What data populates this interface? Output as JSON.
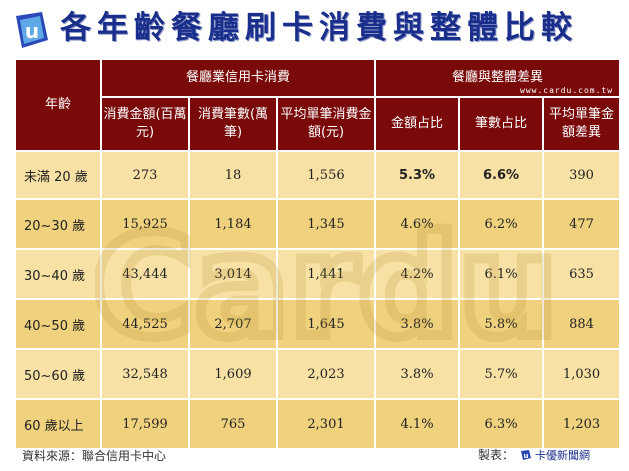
{
  "title": "各年齡餐廳刷卡消費與整體比較",
  "table": {
    "header_row1": {
      "age": "年齡",
      "group_a": "餐廳業信用卡消費",
      "group_b": "餐廳與整體差異"
    },
    "header_row2": {
      "amount": "消費金額(百萬元)",
      "count": "消費筆數(萬筆)",
      "avg": "平均單筆消費金額(元)",
      "amount_share": "金額占比",
      "count_share": "筆數占比",
      "avg_diff": "平均單筆金額差異"
    },
    "rows": [
      {
        "age": "未滿 20 歲",
        "amount": "273",
        "count": "18",
        "avg": "1,556",
        "amount_share": "5.3%",
        "count_share": "6.6%",
        "avg_diff": "390"
      },
      {
        "age": "20~30 歲",
        "amount": "15,925",
        "count": "1,184",
        "avg": "1,345",
        "amount_share": "4.6%",
        "count_share": "6.2%",
        "avg_diff": "477"
      },
      {
        "age": "30~40 歲",
        "amount": "43,444",
        "count": "3,014",
        "avg": "1,441",
        "amount_share": "4.2%",
        "count_share": "6.1%",
        "avg_diff": "635"
      },
      {
        "age": "40~50 歲",
        "amount": "44,525",
        "count": "2,707",
        "avg": "1,645",
        "amount_share": "3.8%",
        "count_share": "5.8%",
        "avg_diff": "884"
      },
      {
        "age": "50~60 歲",
        "amount": "32,548",
        "count": "1,609",
        "avg": "2,023",
        "amount_share": "3.8%",
        "count_share": "5.7%",
        "avg_diff": "1,030"
      },
      {
        "age": "60 歲以上",
        "amount": "17,599",
        "count": "765",
        "avg": "2,301",
        "amount_share": "4.1%",
        "count_share": "6.3%",
        "avg_diff": "1,203"
      }
    ]
  },
  "watermark": {
    "text": "Cardu",
    "site": "www.cardu.com.tw"
  },
  "footer": {
    "source": "資料來源：聯合信用卡中心",
    "maker_label": "製表：",
    "maker_name": "卡優新聞網"
  },
  "colors": {
    "title": "#1a2e8c",
    "header_bg": "#7a0a0a",
    "row_light": "#f7e1a4",
    "row_dark": "#f0d17e"
  }
}
